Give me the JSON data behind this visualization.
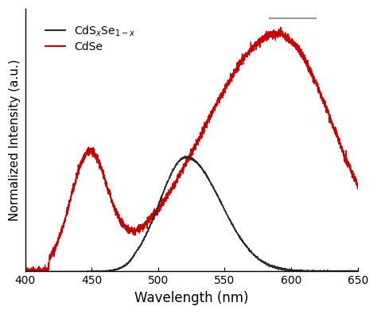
{
  "xlim": [
    400,
    650
  ],
  "ylim": [
    0,
    1.08
  ],
  "xlabel": "Wavelength (nm)",
  "ylabel": "Normalized Intensity (a.u.)",
  "xlabel_fontsize": 12,
  "ylabel_fontsize": 11,
  "tick_fontsize": 10,
  "background_color": "#ffffff",
  "cdse_color": "#cc0000",
  "cdsxse_color": "#2a2a2a",
  "legend_gray_color": "#999999",
  "cdse_label": "CdSe",
  "cdsxse_label": "CdS$_x$Se$_{1-x}$",
  "noise_seed": 42,
  "figsize": [
    4.74,
    3.95
  ],
  "dpi": 100
}
